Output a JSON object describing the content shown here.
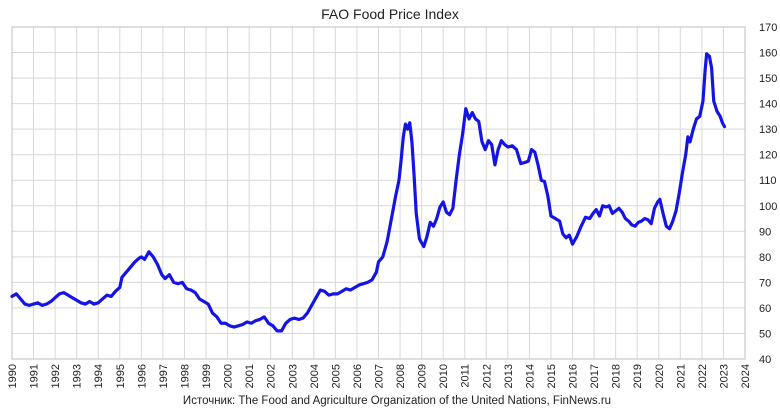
{
  "chart_data": {
    "type": "line",
    "title": "FAO Food Price Index",
    "source": "Источник: The Food and Agriculture Organization of the United Nations, FinNews.ru",
    "xlabel": "",
    "ylabel": "",
    "xlim": [
      1990,
      2024
    ],
    "ylim": [
      40,
      170
    ],
    "y_axis_position": "right",
    "grid": true,
    "line_color": "#1414e6",
    "x_ticks": [
      "1990",
      "1991",
      "1992",
      "1993",
      "1994",
      "1995",
      "1996",
      "1997",
      "1998",
      "1999",
      "2000",
      "2001",
      "2002",
      "2003",
      "2004",
      "2005",
      "2006",
      "2007",
      "2008",
      "2009",
      "2010",
      "2011",
      "2012",
      "2013",
      "2014",
      "2015",
      "2016",
      "2017",
      "2018",
      "2019",
      "2020",
      "2021",
      "2022",
      "2023",
      "2024"
    ],
    "y_ticks": [
      "40",
      "50",
      "60",
      "70",
      "80",
      "90",
      "100",
      "110",
      "120",
      "130",
      "140",
      "150",
      "160",
      "170"
    ],
    "series": [
      {
        "points": [
          [
            1990.0,
            64.5
          ],
          [
            1990.2,
            65.5
          ],
          [
            1990.4,
            63.5
          ],
          [
            1990.6,
            61.5
          ],
          [
            1990.8,
            61.0
          ],
          [
            1991.0,
            61.5
          ],
          [
            1991.2,
            62.0
          ],
          [
            1991.4,
            61.0
          ],
          [
            1991.6,
            61.5
          ],
          [
            1991.8,
            62.5
          ],
          [
            1992.0,
            64.0
          ],
          [
            1992.2,
            65.5
          ],
          [
            1992.4,
            66.0
          ],
          [
            1992.6,
            65.0
          ],
          [
            1992.8,
            64.0
          ],
          [
            1993.0,
            63.0
          ],
          [
            1993.2,
            62.0
          ],
          [
            1993.4,
            61.5
          ],
          [
            1993.6,
            62.5
          ],
          [
            1993.8,
            61.5
          ],
          [
            1994.0,
            62.0
          ],
          [
            1994.2,
            63.5
          ],
          [
            1994.4,
            65.0
          ],
          [
            1994.6,
            64.5
          ],
          [
            1994.8,
            66.5
          ],
          [
            1995.0,
            68.0
          ],
          [
            1995.1,
            72.0
          ],
          [
            1995.3,
            74.0
          ],
          [
            1995.5,
            76.0
          ],
          [
            1995.7,
            78.0
          ],
          [
            1995.9,
            79.5
          ],
          [
            1996.0,
            80.0
          ],
          [
            1996.15,
            79.0
          ],
          [
            1996.35,
            82.0
          ],
          [
            1996.55,
            80.0
          ],
          [
            1996.75,
            77.0
          ],
          [
            1996.95,
            73.0
          ],
          [
            1997.1,
            71.5
          ],
          [
            1997.3,
            73.0
          ],
          [
            1997.5,
            70.0
          ],
          [
            1997.7,
            69.5
          ],
          [
            1997.9,
            70.0
          ],
          [
            1998.1,
            67.5
          ],
          [
            1998.3,
            67.0
          ],
          [
            1998.5,
            66.0
          ],
          [
            1998.7,
            63.5
          ],
          [
            1998.9,
            62.5
          ],
          [
            1999.1,
            61.5
          ],
          [
            1999.3,
            58.0
          ],
          [
            1999.5,
            56.5
          ],
          [
            1999.7,
            54.0
          ],
          [
            1999.9,
            54.0
          ],
          [
            2000.1,
            53.0
          ],
          [
            2000.3,
            52.5
          ],
          [
            2000.5,
            53.0
          ],
          [
            2000.7,
            53.5
          ],
          [
            2000.9,
            54.5
          ],
          [
            2001.1,
            54.0
          ],
          [
            2001.3,
            55.0
          ],
          [
            2001.5,
            55.5
          ],
          [
            2001.7,
            56.5
          ],
          [
            2001.9,
            54.0
          ],
          [
            2002.1,
            53.0
          ],
          [
            2002.3,
            51.0
          ],
          [
            2002.5,
            51.0
          ],
          [
            2002.7,
            54.0
          ],
          [
            2002.9,
            55.5
          ],
          [
            2003.1,
            56.0
          ],
          [
            2003.3,
            55.5
          ],
          [
            2003.5,
            56.0
          ],
          [
            2003.7,
            58.0
          ],
          [
            2003.9,
            61.0
          ],
          [
            2004.1,
            64.0
          ],
          [
            2004.3,
            67.0
          ],
          [
            2004.5,
            66.5
          ],
          [
            2004.7,
            65.0
          ],
          [
            2004.9,
            65.5
          ],
          [
            2005.1,
            65.5
          ],
          [
            2005.3,
            66.5
          ],
          [
            2005.5,
            67.5
          ],
          [
            2005.7,
            67.0
          ],
          [
            2005.9,
            68.0
          ],
          [
            2006.1,
            69.0
          ],
          [
            2006.3,
            69.5
          ],
          [
            2006.5,
            70.0
          ],
          [
            2006.7,
            71.0
          ],
          [
            2006.9,
            74.0
          ],
          [
            2007.0,
            78.0
          ],
          [
            2007.2,
            80.0
          ],
          [
            2007.4,
            86.0
          ],
          [
            2007.6,
            95.0
          ],
          [
            2007.8,
            104.0
          ],
          [
            2007.95,
            110.0
          ],
          [
            2008.05,
            118.0
          ],
          [
            2008.15,
            127.0
          ],
          [
            2008.25,
            132.0
          ],
          [
            2008.35,
            130.0
          ],
          [
            2008.45,
            132.5
          ],
          [
            2008.55,
            125.0
          ],
          [
            2008.65,
            112.0
          ],
          [
            2008.75,
            97.0
          ],
          [
            2008.9,
            87.0
          ],
          [
            2009.1,
            84.0
          ],
          [
            2009.25,
            88.0
          ],
          [
            2009.4,
            93.5
          ],
          [
            2009.55,
            92.0
          ],
          [
            2009.7,
            95.0
          ],
          [
            2009.85,
            99.5
          ],
          [
            2010.0,
            101.5
          ],
          [
            2010.15,
            97.5
          ],
          [
            2010.3,
            96.5
          ],
          [
            2010.45,
            99.0
          ],
          [
            2010.6,
            110.0
          ],
          [
            2010.75,
            120.0
          ],
          [
            2010.9,
            128.0
          ],
          [
            2011.05,
            138.0
          ],
          [
            2011.2,
            134.0
          ],
          [
            2011.35,
            136.5
          ],
          [
            2011.5,
            134.0
          ],
          [
            2011.65,
            133.0
          ],
          [
            2011.8,
            125.0
          ],
          [
            2011.95,
            122.0
          ],
          [
            2012.1,
            125.5
          ],
          [
            2012.25,
            124.0
          ],
          [
            2012.4,
            116.0
          ],
          [
            2012.55,
            122.0
          ],
          [
            2012.7,
            125.5
          ],
          [
            2012.85,
            124.0
          ],
          [
            2013.0,
            123.0
          ],
          [
            2013.2,
            123.5
          ],
          [
            2013.4,
            122.0
          ],
          [
            2013.6,
            116.5
          ],
          [
            2013.8,
            117.0
          ],
          [
            2013.95,
            117.5
          ],
          [
            2014.1,
            122.0
          ],
          [
            2014.25,
            121.0
          ],
          [
            2014.4,
            116.0
          ],
          [
            2014.55,
            110.0
          ],
          [
            2014.7,
            109.5
          ],
          [
            2014.85,
            104.0
          ],
          [
            2015.0,
            96.0
          ],
          [
            2015.2,
            95.0
          ],
          [
            2015.4,
            94.0
          ],
          [
            2015.55,
            89.0
          ],
          [
            2015.7,
            87.5
          ],
          [
            2015.85,
            88.5
          ],
          [
            2016.0,
            85.0
          ],
          [
            2016.2,
            88.0
          ],
          [
            2016.4,
            92.0
          ],
          [
            2016.6,
            95.5
          ],
          [
            2016.8,
            95.0
          ],
          [
            2016.95,
            97.0
          ],
          [
            2017.1,
            98.5
          ],
          [
            2017.25,
            96.0
          ],
          [
            2017.4,
            100.0
          ],
          [
            2017.55,
            99.5
          ],
          [
            2017.7,
            100.0
          ],
          [
            2017.85,
            97.0
          ],
          [
            2018.0,
            98.0
          ],
          [
            2018.15,
            99.0
          ],
          [
            2018.3,
            97.5
          ],
          [
            2018.45,
            95.0
          ],
          [
            2018.6,
            94.0
          ],
          [
            2018.75,
            92.5
          ],
          [
            2018.9,
            92.0
          ],
          [
            2019.05,
            93.5
          ],
          [
            2019.2,
            94.0
          ],
          [
            2019.35,
            95.0
          ],
          [
            2019.5,
            94.5
          ],
          [
            2019.65,
            93.0
          ],
          [
            2019.8,
            99.0
          ],
          [
            2019.95,
            101.5
          ],
          [
            2020.05,
            102.5
          ],
          [
            2020.2,
            97.0
          ],
          [
            2020.35,
            92.0
          ],
          [
            2020.5,
            91.0
          ],
          [
            2020.65,
            94.0
          ],
          [
            2020.8,
            98.0
          ],
          [
            2020.95,
            105.0
          ],
          [
            2021.1,
            113.0
          ],
          [
            2021.25,
            120.0
          ],
          [
            2021.35,
            127.0
          ],
          [
            2021.45,
            125.0
          ],
          [
            2021.6,
            130.0
          ],
          [
            2021.75,
            134.0
          ],
          [
            2021.9,
            135.0
          ],
          [
            2022.05,
            141.0
          ],
          [
            2022.15,
            153.0
          ],
          [
            2022.22,
            159.5
          ],
          [
            2022.35,
            158.5
          ],
          [
            2022.45,
            154.0
          ],
          [
            2022.55,
            141.0
          ],
          [
            2022.7,
            137.0
          ],
          [
            2022.85,
            135.0
          ],
          [
            2022.95,
            132.5
          ],
          [
            2023.05,
            131.0
          ]
        ]
      }
    ]
  }
}
